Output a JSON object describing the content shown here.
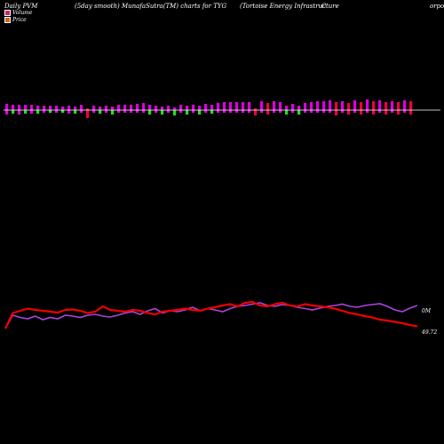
{
  "header": {
    "part1": "Daily PVM",
    "part2": "(5day smooth) MunafaSutra(TM) charts for TYG",
    "part3": "(Tortoise  Energy Infrastructure",
    "part4": "C",
    "part5": "orpor"
  },
  "legend": {
    "volume": "Volume",
    "price": "Price"
  },
  "colors": {
    "background": "#000000",
    "up_bar": "#dd00dd",
    "down_bar": "#ee0044",
    "green_bar": "#22dd22",
    "baseline": "#ffffff",
    "price_line": "#ee0000",
    "volume_line": "#aa44dd"
  },
  "chart_data": {
    "type": "bar",
    "bar_colors": [
      "m",
      "g",
      "m",
      "g",
      "m",
      "g",
      "m",
      "g",
      "m",
      "g",
      "m",
      "g",
      "m",
      "r",
      "m",
      "g",
      "m",
      "g",
      "m",
      "m",
      "m",
      "m",
      "m",
      "g",
      "m",
      "g",
      "m",
      "g",
      "m",
      "g",
      "m",
      "g",
      "m",
      "g",
      "m",
      "m",
      "m",
      "m",
      "m",
      "m",
      "r",
      "m",
      "r",
      "m",
      "m",
      "g",
      "m",
      "g",
      "m",
      "m",
      "m",
      "m",
      "m",
      "r",
      "m",
      "r",
      "m",
      "r",
      "m",
      "r",
      "m",
      "r",
      "m",
      "r",
      "m",
      "r"
    ],
    "bar_up": [
      1,
      1,
      1,
      1,
      1,
      1,
      1,
      1,
      1,
      1,
      1,
      1,
      1,
      1,
      1,
      1,
      1,
      1,
      1,
      1,
      1,
      1,
      1,
      1,
      1,
      1,
      1,
      1,
      1,
      1,
      1,
      1,
      1,
      1,
      1,
      1,
      1,
      1,
      1,
      1,
      1,
      1,
      1,
      1,
      1,
      1,
      1,
      1,
      1,
      1,
      1,
      1,
      1,
      1,
      1,
      1,
      1,
      1,
      1,
      1,
      1,
      1,
      1,
      1,
      1,
      1
    ],
    "bar_values_up": [
      7,
      6,
      6,
      6,
      6,
      5,
      5,
      5,
      5,
      4,
      5,
      4,
      6,
      2,
      5,
      4,
      5,
      4,
      6,
      6,
      6,
      7,
      8,
      6,
      5,
      4,
      5,
      3,
      6,
      5,
      6,
      5,
      7,
      6,
      8,
      9,
      9,
      9,
      9,
      9,
      2,
      10,
      8,
      10,
      9,
      5,
      7,
      5,
      8,
      9,
      10,
      10,
      11,
      9,
      10,
      8,
      11,
      9,
      12,
      10,
      11,
      9,
      10,
      9,
      11,
      10
    ],
    "bar_values_down": [
      5,
      4,
      5,
      4,
      4,
      4,
      3,
      3,
      3,
      3,
      4,
      4,
      3,
      9,
      3,
      4,
      3,
      5,
      3,
      3,
      3,
      3,
      3,
      5,
      3,
      5,
      3,
      6,
      3,
      5,
      3,
      5,
      3,
      4,
      3,
      3,
      3,
      3,
      3,
      3,
      6,
      3,
      5,
      3,
      3,
      5,
      3,
      5,
      3,
      3,
      3,
      3,
      3,
      6,
      3,
      5,
      3,
      5,
      3,
      5,
      3,
      5,
      3,
      5,
      3,
      5
    ],
    "price_series": [
      0.2,
      0.55,
      0.6,
      0.65,
      0.62,
      0.6,
      0.58,
      0.56,
      0.62,
      0.63,
      0.6,
      0.55,
      0.58,
      0.7,
      0.62,
      0.6,
      0.58,
      0.62,
      0.6,
      0.55,
      0.52,
      0.58,
      0.6,
      0.62,
      0.65,
      0.62,
      0.6,
      0.65,
      0.68,
      0.72,
      0.75,
      0.7,
      0.78,
      0.8,
      0.72,
      0.7,
      0.75,
      0.78,
      0.72,
      0.7,
      0.75,
      0.72,
      0.7,
      0.68,
      0.65,
      0.6,
      0.55,
      0.52,
      0.48,
      0.45,
      0.4,
      0.38,
      0.35,
      0.32,
      0.28,
      0.25
    ],
    "volume_series": [
      0.2,
      0.5,
      0.45,
      0.42,
      0.48,
      0.4,
      0.45,
      0.42,
      0.5,
      0.48,
      0.45,
      0.5,
      0.52,
      0.48,
      0.46,
      0.5,
      0.55,
      0.58,
      0.52,
      0.6,
      0.65,
      0.55,
      0.6,
      0.58,
      0.62,
      0.68,
      0.6,
      0.65,
      0.62,
      0.58,
      0.65,
      0.7,
      0.72,
      0.75,
      0.78,
      0.72,
      0.7,
      0.74,
      0.72,
      0.68,
      0.65,
      0.62,
      0.66,
      0.7,
      0.72,
      0.75,
      0.7,
      0.68,
      0.72,
      0.74,
      0.76,
      0.7,
      0.62,
      0.58,
      0.66,
      0.72
    ],
    "labels": {
      "volume_label": "0M",
      "price_label": "49.72"
    }
  }
}
